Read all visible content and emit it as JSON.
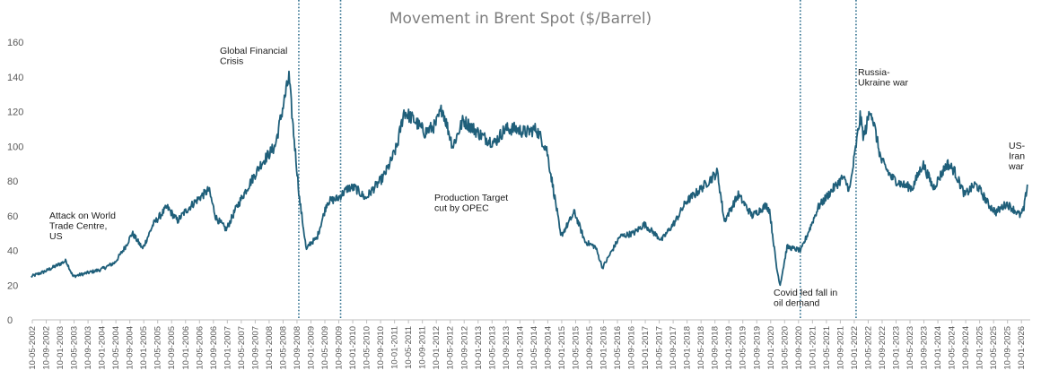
{
  "chart_data": {
    "type": "line",
    "title": "Movement in Brent Spot ($/Barrel)",
    "xlabel": "",
    "ylabel": "",
    "ylim": [
      0,
      160
    ],
    "yticks": [
      "0",
      "20",
      "40",
      "60",
      "80",
      "100",
      "120",
      "140",
      "160"
    ],
    "grid": false,
    "legend": "none",
    "line_color": "#1f5f7a",
    "event_line_color": "#2e6f8e",
    "x_tick_labels": [
      "10-05-2002",
      "10-09-2002",
      "10-01-2003",
      "10-05-2003",
      "10-09-2003",
      "10-01-2004",
      "10-05-2004",
      "10-09-2004",
      "10-01-2005",
      "10-05-2005",
      "10-09-2005",
      "10-01-2006",
      "10-05-2006",
      "10-09-2006",
      "10-01-2007",
      "10-05-2007",
      "10-09-2007",
      "10-01-2008",
      "10-05-2008",
      "10-09-2008",
      "10-01-2009",
      "10-05-2009",
      "10-09-2009",
      "10-01-2010",
      "10-05-2010",
      "10-09-2010",
      "10-01-2011",
      "10-05-2011",
      "10-09-2011",
      "10-01-2012",
      "10-05-2012",
      "10-09-2012",
      "10-01-2013",
      "10-05-2013",
      "10-09-2013",
      "10-01-2014",
      "10-05-2014",
      "10-09-2014",
      "10-01-2015",
      "10-05-2015",
      "10-09-2015",
      "10-01-2016",
      "10-05-2016",
      "10-09-2016",
      "10-01-2017",
      "10-05-2017",
      "10-09-2017",
      "10-01-2018",
      "10-05-2018",
      "10-09-2018",
      "10-01-2019",
      "10-05-2019",
      "10-09-2019",
      "10-01-2020",
      "10-05-2020",
      "10-09-2020",
      "10-01-2021",
      "10-05-2021",
      "10-09-2021",
      "10-01-2022",
      "10-05-2022",
      "10-09-2022",
      "10-01-2023",
      "10-05-2023",
      "10-09-2023",
      "10-01-2024",
      "10-05-2024",
      "10-09-2024",
      "10-01-2025",
      "10-05-2025",
      "10-09-2025",
      "10-01-2026"
    ],
    "series": [
      {
        "name": "",
        "x": [
          "2002-05",
          "2002-09",
          "2003-01",
          "2003-03",
          "2003-05",
          "2003-09",
          "2004-01",
          "2004-05",
          "2004-08",
          "2004-10",
          "2005-01",
          "2005-04",
          "2005-08",
          "2005-11",
          "2006-01",
          "2006-04",
          "2006-08",
          "2006-10",
          "2007-01",
          "2007-04",
          "2007-07",
          "2007-11",
          "2008-01",
          "2008-03",
          "2008-05",
          "2008-07",
          "2008-08",
          "2008-10",
          "2008-12",
          "2009-01",
          "2009-03",
          "2009-06",
          "2009-09",
          "2009-12",
          "2010-02",
          "2010-05",
          "2010-07",
          "2010-10",
          "2010-12",
          "2011-02",
          "2011-04",
          "2011-07",
          "2011-10",
          "2012-01",
          "2012-03",
          "2012-06",
          "2012-09",
          "2012-12",
          "2013-03",
          "2013-06",
          "2013-09",
          "2013-12",
          "2014-03",
          "2014-06",
          "2014-09",
          "2014-12",
          "2015-01",
          "2015-05",
          "2015-08",
          "2015-11",
          "2016-01",
          "2016-06",
          "2016-10",
          "2017-01",
          "2017-06",
          "2017-10",
          "2018-01",
          "2018-05",
          "2018-10",
          "2018-12",
          "2019-04",
          "2019-08",
          "2019-12",
          "2020-01",
          "2020-03",
          "2020-04",
          "2020-06",
          "2020-10",
          "2021-01",
          "2021-03",
          "2021-07",
          "2021-10",
          "2021-12",
          "2022-03",
          "2022-04",
          "2022-06",
          "2022-09",
          "2022-12",
          "2023-03",
          "2023-06",
          "2023-09",
          "2023-12",
          "2024-04",
          "2024-06",
          "2024-09",
          "2024-12",
          "2025-01",
          "2025-04",
          "2025-06",
          "2025-09",
          "2025-12",
          "2026-01",
          "2026-02",
          "2026-03"
        ],
        "values": [
          25,
          28,
          32,
          34,
          25,
          27,
          29,
          33,
          42,
          50,
          41,
          55,
          65,
          57,
          62,
          68,
          75,
          59,
          52,
          65,
          76,
          90,
          95,
          100,
          120,
          140,
          115,
          70,
          40,
          44,
          47,
          68,
          70,
          76,
          76,
          70,
          75,
          82,
          90,
          100,
          120,
          115,
          108,
          112,
          122,
          100,
          115,
          110,
          105,
          102,
          110,
          110,
          108,
          110,
          98,
          62,
          48,
          62,
          45,
          42,
          30,
          48,
          50,
          55,
          46,
          57,
          68,
          75,
          85,
          57,
          72,
          60,
          66,
          63,
          30,
          20,
          42,
          40,
          55,
          65,
          75,
          82,
          75,
          117,
          105,
          122,
          92,
          82,
          78,
          76,
          90,
          76,
          90,
          86,
          72,
          78,
          76,
          66,
          62,
          67,
          62,
          60,
          64,
          78
        ]
      }
    ],
    "annotations": [
      {
        "lines": [
          "Attack on World",
          "Trade Centre,",
          "US"
        ]
      },
      {
        "lines": [
          "Global Financial",
          "Crisis"
        ]
      },
      {
        "lines": [
          "Production Target",
          "cut by OPEC"
        ]
      },
      {
        "lines": [
          "Covid led fall in",
          "oil demand"
        ]
      },
      {
        "lines": [
          "Russia-",
          "Ukraine war"
        ]
      },
      {
        "lines": [
          "US-",
          "Iran",
          "war"
        ]
      }
    ],
    "event_lines": [
      "10-09-2008",
      "10-09-2009",
      "10-09-2020",
      "10-01-2022"
    ]
  }
}
